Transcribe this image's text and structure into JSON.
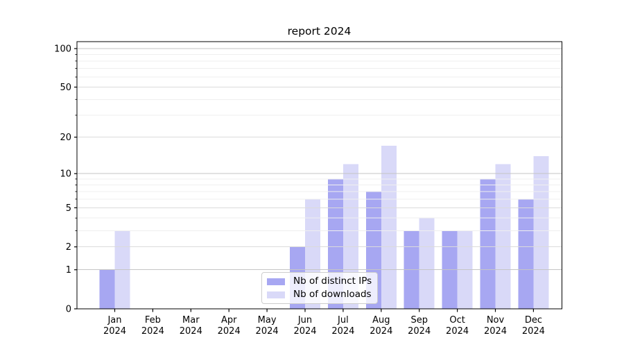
{
  "window": {
    "background": "#ffffff"
  },
  "chart_data": {
    "type": "bar",
    "title": "report 2024",
    "categories": [
      "Jan 2024",
      "Feb 2024",
      "Mar 2024",
      "Apr 2024",
      "May 2024",
      "Jun 2024",
      "Jul 2024",
      "Aug 2024",
      "Sep 2024",
      "Oct 2024",
      "Nov 2024",
      "Dec 2024"
    ],
    "series": [
      {
        "name": "Nb of distinct IPs",
        "color": "#a7a7f2",
        "values": [
          1,
          0,
          0,
          0,
          0,
          2,
          9,
          7,
          3,
          3,
          9,
          6
        ]
      },
      {
        "name": "Nb of downloads",
        "color": "#d9d9f8",
        "values": [
          3,
          0,
          0,
          0,
          0,
          6,
          12,
          17,
          4,
          3,
          12,
          14
        ]
      }
    ],
    "xlabel": "",
    "ylabel": "",
    "yscale": "log1p",
    "ylim": [
      0,
      113
    ],
    "yticks": [
      0,
      1,
      2,
      5,
      10,
      20,
      50,
      100
    ],
    "ytick_major": [
      1,
      10,
      100
    ],
    "ytick_mid": [
      2,
      5,
      20,
      50
    ],
    "ytick_minor": [
      3,
      4,
      6,
      7,
      8,
      9,
      30,
      40,
      60,
      70,
      80,
      90
    ],
    "grid": true,
    "legend_position": "lower center",
    "colors": {
      "grid_major": "#c5c5c5",
      "grid_mid": "#dbdbdb",
      "grid_minor": "#efefef",
      "spine": "#000000",
      "tick_label": "#000000",
      "legend_border": "#cccccc",
      "legend_bg": "rgba(255,255,255,0.8)"
    }
  }
}
